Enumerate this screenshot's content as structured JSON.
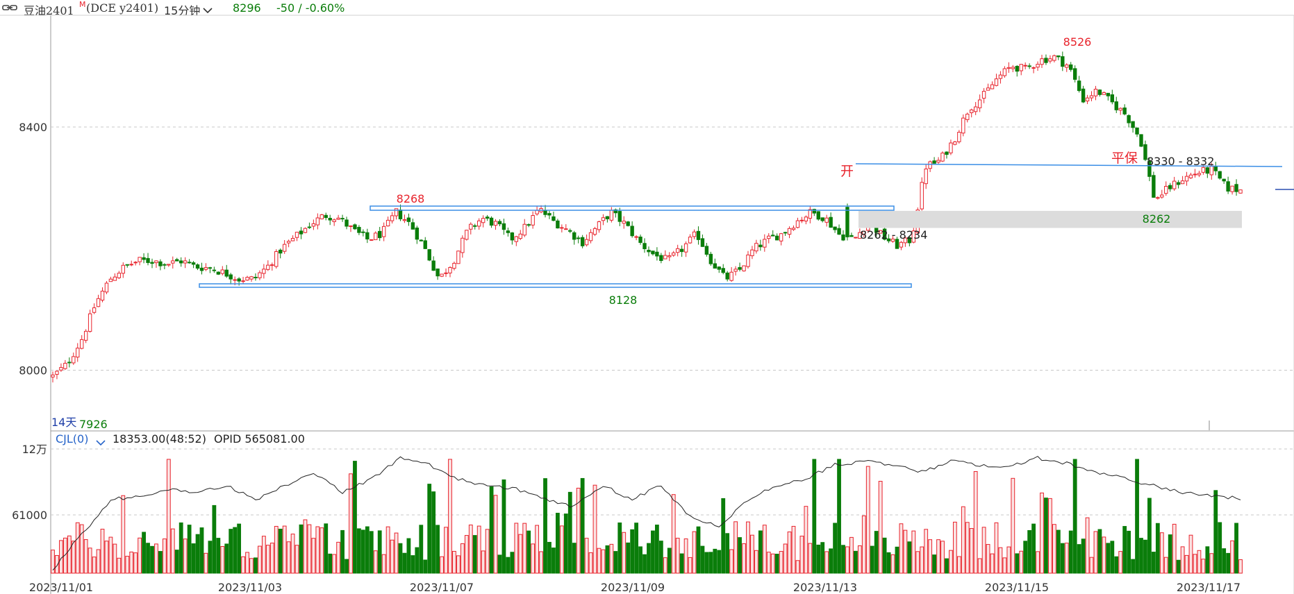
{
  "header": {
    "link_icon": "chain-link-icon",
    "symbol": "豆油2401",
    "main_flag": "M",
    "exchange": "(DCE  y2401)",
    "period": "15分钟",
    "period_icon": "chevron-down-icon",
    "last_price": "8296",
    "change": "-50 / -0.60%"
  },
  "volume_header": {
    "indicator": "CJL(0)",
    "indicator_icon": "chevron-down-icon",
    "volume_value": "18353.00(48:52)",
    "opid": "OPID 565081.00"
  },
  "colors": {
    "up": "#e8232c",
    "down": "#0a7d0a",
    "box": "#3a8ee6",
    "zone": "#dcdcdc",
    "grid": "#c8c8c8",
    "text": "#333333"
  },
  "annotations": {
    "range_high": "8268",
    "range_low": "8128",
    "gap_zone": "8262 - 8234",
    "peak": "8526",
    "open_mark": "开",
    "breakeven_mark": "平保",
    "level_range": "8330 - 8332",
    "retest_low": "8262",
    "period_days": "14天",
    "period_low": "7926"
  },
  "chart_data": {
    "type": "candlestick",
    "symbol": "豆油2401",
    "timeframe": "15分钟",
    "y_ticks": [
      8000,
      8400
    ],
    "y_range": [
      7920,
      8540
    ],
    "x_labels": [
      "2023/11/01",
      "2023/11/03",
      "2023/11/07",
      "2023/11/09",
      "2023/11/13",
      "2023/11/15",
      "2023/11/17"
    ],
    "close_path": [
      7990,
      8010,
      8050,
      8110,
      8150,
      8170,
      8180,
      8180,
      8175,
      8180,
      8170,
      8168,
      8160,
      8150,
      8150,
      8170,
      8200,
      8220,
      8240,
      8255,
      8250,
      8230,
      8215,
      8225,
      8260,
      8240,
      8200,
      8150,
      8180,
      8230,
      8250,
      8240,
      8215,
      8235,
      8265,
      8245,
      8230,
      8210,
      8235,
      8260,
      8240,
      8210,
      8190,
      8180,
      8200,
      8225,
      8180,
      8150,
      8165,
      8200,
      8215,
      8225,
      8245,
      8260,
      8250,
      8222,
      8215,
      8245,
      8220,
      8205,
      8215,
      8335,
      8345,
      8380,
      8430,
      8450,
      8480,
      8500,
      8495,
      8510,
      8515,
      8500,
      8445,
      8460,
      8440,
      8420,
      8380,
      8280,
      8300,
      8315,
      8325,
      8330,
      8300,
      8296
    ],
    "key_levels": {
      "range_high": 8268,
      "range_low": 8128,
      "gap_zone": [
        8234,
        8262
      ],
      "peak": 8526,
      "level": [
        8330,
        8332
      ],
      "retest_low": 8262,
      "period_low": 7926
    },
    "volume_axis": {
      "ticks": [
        "12万",
        "61000"
      ]
    }
  }
}
